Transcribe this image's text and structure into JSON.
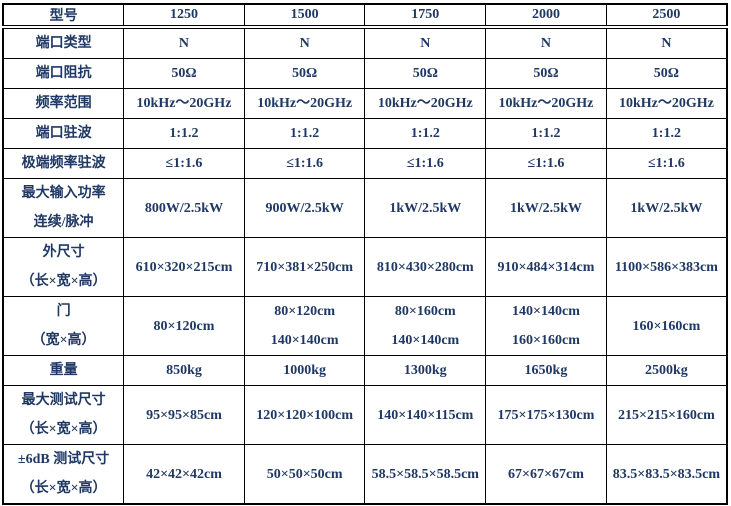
{
  "table": {
    "text_color": "#1F3864",
    "border_color": "#000000",
    "header": {
      "label": "型号",
      "models": [
        "1250",
        "1500",
        "1750",
        "2000",
        "2500"
      ]
    },
    "rows": [
      {
        "label": [
          "端口类型"
        ],
        "values": [
          [
            "N"
          ],
          [
            "N"
          ],
          [
            "N"
          ],
          [
            "N"
          ],
          [
            "N"
          ]
        ]
      },
      {
        "label": [
          "端口阻抗"
        ],
        "values": [
          [
            "50Ω"
          ],
          [
            "50Ω"
          ],
          [
            "50Ω"
          ],
          [
            "50Ω"
          ],
          [
            "50Ω"
          ]
        ]
      },
      {
        "label": [
          "频率范围"
        ],
        "values": [
          [
            "10kHz～20GHz"
          ],
          [
            "10kHz～20GHz"
          ],
          [
            "10kHz～20GHz"
          ],
          [
            "10kHz～20GHz"
          ],
          [
            "10kHz～20GHz"
          ]
        ]
      },
      {
        "label": [
          "端口驻波"
        ],
        "values": [
          [
            "1:1.2"
          ],
          [
            "1:1.2"
          ],
          [
            "1:1.2"
          ],
          [
            "1:1.2"
          ],
          [
            "1:1.2"
          ]
        ]
      },
      {
        "label": [
          "极端频率驻波"
        ],
        "values": [
          [
            "≤1:1.6"
          ],
          [
            "≤1:1.6"
          ],
          [
            "≤1:1.6"
          ],
          [
            "≤1:1.6"
          ],
          [
            "≤1:1.6"
          ]
        ]
      },
      {
        "label": [
          "最大输入功率",
          "连续/脉冲"
        ],
        "values": [
          [
            "800W/2.5kW"
          ],
          [
            "900W/2.5kW"
          ],
          [
            "1kW/2.5kW"
          ],
          [
            "1kW/2.5kW"
          ],
          [
            "1kW/2.5kW"
          ]
        ]
      },
      {
        "label": [
          "外尺寸",
          "（长×宽×高）"
        ],
        "values": [
          [
            "610×320×215cm"
          ],
          [
            "710×381×250cm"
          ],
          [
            "810×430×280cm"
          ],
          [
            "910×484×314cm"
          ],
          [
            "1100×586×383cm"
          ]
        ]
      },
      {
        "label": [
          "门",
          "（宽×高）"
        ],
        "values": [
          [
            "80×120cm"
          ],
          [
            "80×120cm",
            "140×140cm"
          ],
          [
            "80×160cm",
            "140×140cm"
          ],
          [
            "140×140cm",
            "160×160cm"
          ],
          [
            "160×160cm"
          ]
        ]
      },
      {
        "label": [
          "重量"
        ],
        "values": [
          [
            "850kg"
          ],
          [
            "1000kg"
          ],
          [
            "1300kg"
          ],
          [
            "1650kg"
          ],
          [
            "2500kg"
          ]
        ]
      },
      {
        "label": [
          "最大测试尺寸",
          "（长×宽×高）"
        ],
        "values": [
          [
            "95×95×85cm"
          ],
          [
            "120×120×100cm"
          ],
          [
            "140×140×115cm"
          ],
          [
            "175×175×130cm"
          ],
          [
            "215×215×160cm"
          ]
        ]
      },
      {
        "label": [
          "±6dB 测试尺寸",
          "（长×宽×高）"
        ],
        "values": [
          [
            "42×42×42cm"
          ],
          [
            "50×50×50cm"
          ],
          [
            "58.5×58.5×58.5cm"
          ],
          [
            "67×67×67cm"
          ],
          [
            "83.5×83.5×83.5cm"
          ]
        ]
      }
    ]
  }
}
